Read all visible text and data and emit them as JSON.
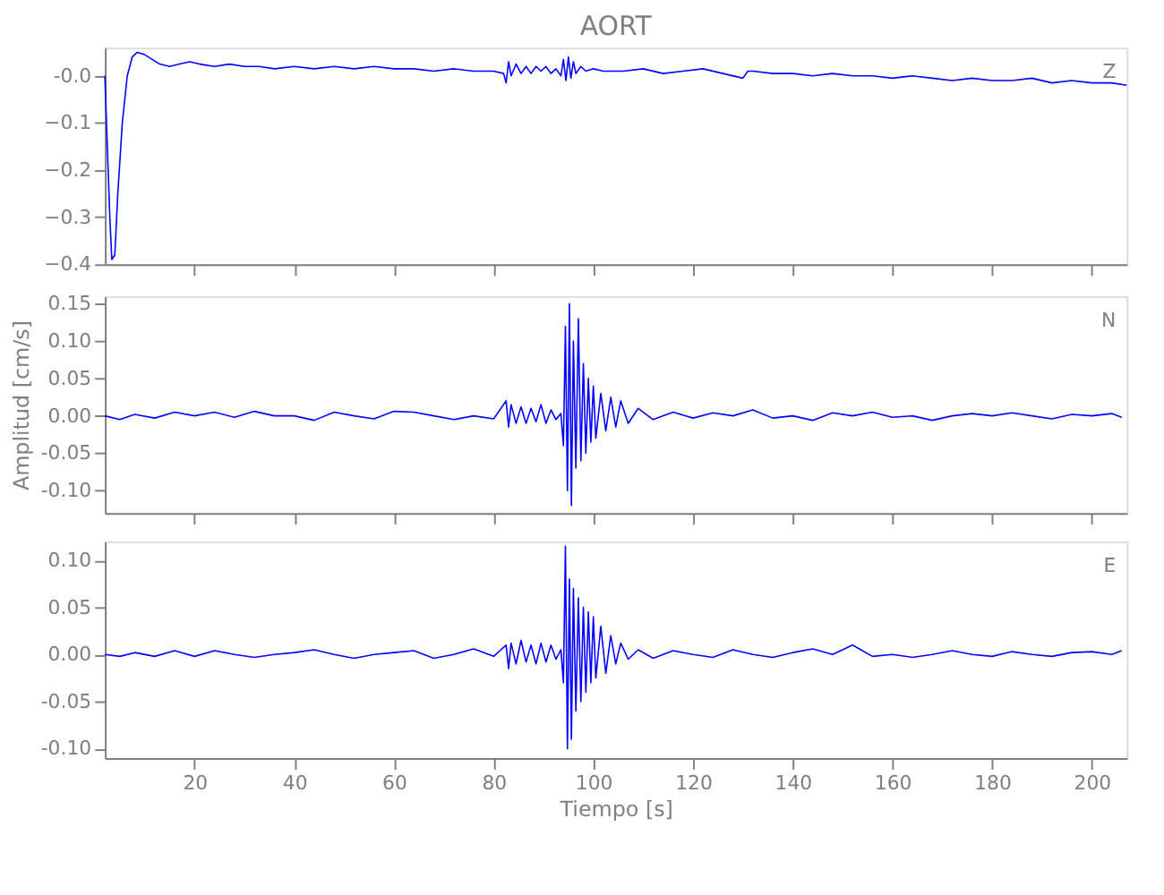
{
  "chart_data": [
    {
      "type": "line",
      "title": "AORT",
      "annotations": [
        "Z"
      ],
      "tick_labels": "y",
      "grid": false,
      "marker": "none",
      "line_style": "solid",
      "xlim": [
        2,
        207
      ],
      "xticks": [
        20,
        40,
        60,
        80,
        100,
        120,
        140,
        160,
        180,
        200
      ],
      "ylim": [
        -0.4,
        0.06
      ],
      "yticks": [
        {
          "value": 0,
          "label": "-0.0"
        },
        -0.1,
        -0.2,
        -0.3,
        -0.4
      ],
      "x": [
        2,
        2.5,
        3,
        3.4,
        4,
        4.6,
        5.5,
        6.5,
        7.5,
        8.5,
        10,
        11.5,
        13,
        15,
        17,
        19,
        21,
        24,
        27,
        30,
        33,
        36,
        40,
        44,
        48,
        52,
        56,
        60,
        64,
        68,
        72,
        76,
        80,
        82,
        82.5,
        83,
        83.5,
        84.5,
        85.5,
        86.5,
        87.5,
        88.5,
        89.5,
        90.5,
        91.5,
        92.5,
        93.5,
        94,
        94.5,
        95,
        95.5,
        96,
        96.5,
        97.5,
        98.5,
        100,
        102,
        106,
        110,
        114,
        118,
        122,
        126,
        130,
        131,
        132,
        136,
        140,
        144,
        148,
        152,
        156,
        160,
        164,
        168,
        172,
        176,
        180,
        184,
        188,
        192,
        196,
        200,
        204,
        207
      ],
      "series": [
        {
          "color": "#0000ff",
          "values": [
            0.0,
            -0.15,
            -0.3,
            -0.39,
            -0.38,
            -0.25,
            -0.1,
            0.0,
            0.04,
            0.05,
            0.045,
            0.035,
            0.025,
            0.02,
            0.025,
            0.03,
            0.025,
            0.02,
            0.025,
            0.02,
            0.02,
            0.015,
            0.02,
            0.015,
            0.02,
            0.015,
            0.02,
            0.015,
            0.015,
            0.01,
            0.015,
            0.01,
            0.01,
            0.005,
            -0.015,
            0.03,
            0.0,
            0.025,
            0.005,
            0.02,
            0.005,
            0.02,
            0.01,
            0.02,
            0.005,
            0.015,
            0.0,
            0.035,
            -0.01,
            0.04,
            -0.005,
            0.03,
            0.005,
            0.02,
            0.01,
            0.015,
            0.01,
            0.01,
            0.015,
            0.005,
            0.01,
            0.015,
            0.005,
            -0.005,
            0.01,
            0.01,
            0.005,
            0.005,
            0.0,
            0.005,
            0.0,
            0.0,
            -0.005,
            0.0,
            -0.005,
            -0.01,
            -0.005,
            -0.01,
            -0.01,
            -0.005,
            -0.015,
            -0.01,
            -0.015,
            -0.015,
            -0.02
          ]
        }
      ]
    },
    {
      "type": "line",
      "ylabel": "Amplitud [cm/s]",
      "annotations": [
        "N"
      ],
      "tick_labels": "y",
      "grid": false,
      "marker": "none",
      "line_style": "solid",
      "xlim": [
        2,
        207
      ],
      "xticks": [
        20,
        40,
        60,
        80,
        100,
        120,
        140,
        160,
        180,
        200
      ],
      "ylim": [
        -0.13,
        0.16
      ],
      "yticks": [
        {
          "value": 0.15,
          "label": "0.15"
        },
        {
          "value": 0.1,
          "label": "0.10"
        },
        {
          "value": 0.05,
          "label": "0.05"
        },
        {
          "value": 0,
          "label": "0.00"
        },
        {
          "value": -0.05,
          "label": "-0.05"
        },
        {
          "value": -0.1,
          "label": "-0.10"
        }
      ],
      "x": [
        2,
        5,
        8,
        12,
        16,
        20,
        24,
        28,
        32,
        36,
        40,
        44,
        48,
        52,
        56,
        60,
        64,
        68,
        72,
        76,
        80,
        82.5,
        83,
        83.5,
        84.5,
        85.5,
        86.5,
        87.5,
        88.5,
        89.5,
        90.5,
        91.5,
        92.5,
        93.5,
        94,
        94.4,
        94.8,
        95.2,
        95.6,
        96,
        96.5,
        97,
        97.5,
        98,
        98.5,
        99,
        99.5,
        100,
        100.5,
        101.5,
        102.5,
        103.5,
        104.5,
        105.5,
        107,
        109,
        112,
        116,
        120,
        124,
        128,
        132,
        136,
        140,
        144,
        148,
        152,
        156,
        160,
        164,
        168,
        172,
        176,
        180,
        184,
        188,
        192,
        196,
        200,
        204,
        206
      ],
      "series": [
        {
          "color": "#0000ff",
          "values": [
            0.0,
            -0.005,
            0.002,
            -0.003,
            0.005,
            0.0,
            0.005,
            -0.002,
            0.006,
            0.0,
            0.0,
            -0.006,
            0.005,
            0.0,
            -0.004,
            0.006,
            0.005,
            0.0,
            -0.005,
            0.0,
            -0.004,
            0.02,
            -0.015,
            0.015,
            -0.01,
            0.012,
            -0.01,
            0.01,
            -0.008,
            0.015,
            -0.01,
            0.008,
            -0.005,
            0.003,
            -0.04,
            0.12,
            -0.1,
            0.15,
            -0.12,
            0.1,
            -0.07,
            0.13,
            -0.06,
            0.07,
            -0.05,
            0.05,
            -0.035,
            0.04,
            -0.03,
            0.03,
            -0.02,
            0.025,
            -0.015,
            0.02,
            -0.01,
            0.01,
            -0.005,
            0.005,
            -0.003,
            0.004,
            0.0,
            0.008,
            -0.003,
            0.0,
            -0.006,
            0.004,
            0.0,
            0.005,
            -0.002,
            0.0,
            -0.006,
            0.0,
            0.003,
            0.0,
            0.004,
            0.0,
            -0.004,
            0.002,
            0.0,
            0.003,
            -0.002
          ]
        }
      ]
    },
    {
      "type": "line",
      "xlabel": "Tiempo [s]",
      "annotations": [
        "E"
      ],
      "grid": false,
      "marker": "none",
      "line_style": "solid",
      "xlim": [
        2,
        207
      ],
      "xticks": [
        20,
        40,
        60,
        80,
        100,
        120,
        140,
        160,
        180,
        200
      ],
      "ylim": [
        -0.11,
        0.12
      ],
      "yticks": [
        {
          "value": 0.1,
          "label": "0.10"
        },
        {
          "value": 0.05,
          "label": "0.05"
        },
        {
          "value": 0,
          "label": "0.00"
        },
        {
          "value": -0.05,
          "label": "-0.05"
        },
        {
          "value": -0.1,
          "label": "-0.10"
        }
      ],
      "x": [
        2,
        5,
        8,
        12,
        16,
        20,
        24,
        28,
        32,
        36,
        40,
        44,
        48,
        52,
        56,
        60,
        64,
        68,
        72,
        76,
        80,
        82.5,
        83,
        83.5,
        84.5,
        85.5,
        86.5,
        87.5,
        88.5,
        89.5,
        90.5,
        91.5,
        92.5,
        93.5,
        94,
        94.4,
        94.8,
        95.2,
        95.6,
        96,
        96.5,
        97,
        97.5,
        98,
        98.5,
        99,
        99.5,
        100,
        100.5,
        101.5,
        102.5,
        103.5,
        104.5,
        105.5,
        107,
        109,
        112,
        116,
        120,
        124,
        128,
        132,
        136,
        140,
        144,
        148,
        152,
        156,
        160,
        164,
        168,
        172,
        176,
        180,
        184,
        188,
        192,
        196,
        200,
        204,
        206
      ],
      "series": [
        {
          "color": "#0000ff",
          "values": [
            0.0,
            -0.002,
            0.002,
            -0.002,
            0.004,
            -0.002,
            0.004,
            0.0,
            -0.003,
            0.0,
            0.002,
            0.005,
            0.0,
            -0.004,
            0.0,
            0.002,
            0.004,
            -0.004,
            0.0,
            0.006,
            -0.002,
            0.01,
            -0.015,
            0.012,
            -0.01,
            0.015,
            -0.008,
            0.01,
            -0.01,
            0.012,
            -0.008,
            0.01,
            -0.005,
            0.005,
            -0.03,
            0.115,
            -0.1,
            0.08,
            -0.09,
            0.07,
            -0.06,
            0.06,
            -0.05,
            0.05,
            -0.04,
            0.045,
            -0.03,
            0.04,
            -0.025,
            0.03,
            -0.02,
            0.02,
            -0.01,
            0.012,
            -0.005,
            0.005,
            -0.004,
            0.004,
            0.0,
            -0.003,
            0.005,
            0.0,
            -0.003,
            0.002,
            0.006,
            0.0,
            0.01,
            -0.002,
            0.0,
            -0.003,
            0.0,
            0.004,
            0.0,
            -0.002,
            0.003,
            0.0,
            -0.002,
            0.002,
            0.003,
            0.0,
            0.004
          ]
        }
      ]
    }
  ]
}
